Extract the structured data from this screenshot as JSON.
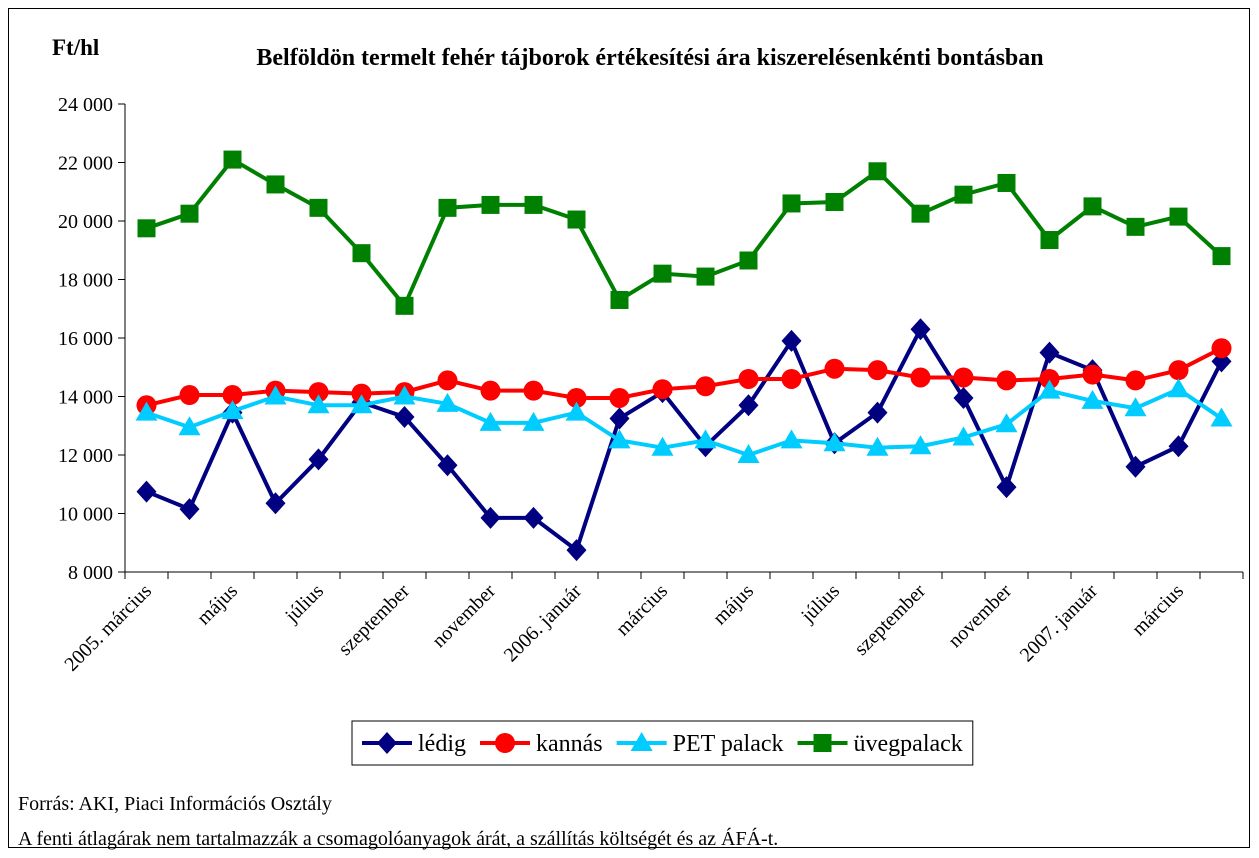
{
  "chart_data": {
    "type": "line",
    "title": "Belföldön termelt fehér tájborok értékesítési ára kiszerelésenkénti bontásban",
    "y_label": "Ft/hl",
    "categories": [
      "2005. március",
      null,
      "május",
      null,
      "július",
      null,
      "szeptember",
      null,
      "november",
      null,
      "2006. január",
      null,
      "március",
      null,
      "május",
      null,
      "július",
      null,
      "szeptember",
      null,
      "november",
      null,
      "2007. január",
      null,
      "március",
      null
    ],
    "series": [
      {
        "name": "lédig",
        "color": "#000080",
        "marker": "diamond",
        "values": [
          10750,
          10150,
          13450,
          10350,
          11850,
          13800,
          13300,
          11650,
          9850,
          9850,
          8750,
          13250,
          14150,
          12300,
          13700,
          15900,
          12400,
          13450,
          16300,
          13950,
          10900,
          15500,
          14900,
          11600,
          12300,
          15200
        ]
      },
      {
        "name": "kannás",
        "color": "#ff0000",
        "marker": "circle",
        "values": [
          13700,
          14050,
          14050,
          14200,
          14150,
          14100,
          14150,
          14550,
          14200,
          14200,
          13950,
          13950,
          14250,
          14350,
          14600,
          14600,
          14950,
          14900,
          14650,
          14650,
          14550,
          14600,
          14750,
          14550,
          14900,
          15650
        ]
      },
      {
        "name": "PET palack",
        "color": "#00ccff",
        "marker": "triangle",
        "values": [
          13450,
          12950,
          13500,
          14000,
          13700,
          13700,
          14000,
          13750,
          13100,
          13100,
          13450,
          12500,
          12250,
          12500,
          12000,
          12500,
          12400,
          12250,
          12300,
          12600,
          13050,
          14200,
          13850,
          13600,
          14250,
          13250
        ]
      },
      {
        "name": "üvegpalack",
        "color": "#008000",
        "marker": "square",
        "values": [
          19750,
          20250,
          22100,
          21250,
          20450,
          18900,
          17100,
          20450,
          20550,
          20550,
          20050,
          17300,
          18200,
          18100,
          18650,
          20600,
          20650,
          21700,
          20250,
          20900,
          21300,
          19350,
          20500,
          19800,
          20150,
          18800
        ]
      }
    ],
    "ylim": [
      8000,
      24000
    ],
    "yticks": [
      {
        "value": 8000,
        "label": "8 000"
      },
      {
        "value": 10000,
        "label": "10 000"
      },
      {
        "value": 12000,
        "label": "12 000"
      },
      {
        "value": 14000,
        "label": "14 000"
      },
      {
        "value": 16000,
        "label": "16 000"
      },
      {
        "value": 18000,
        "label": "18 000"
      },
      {
        "value": 20000,
        "label": "20 000"
      },
      {
        "value": 22000,
        "label": "22 000"
      },
      {
        "value": 24000,
        "label": "24 000"
      }
    ],
    "grid": false,
    "legend": "bottom",
    "source": "Forrás: AKI, Piaci Információs Osztály",
    "note": "A fenti átlagárak nem tartalmazzák a csomagolóanyagok árát, a szállítás költségét és az ÁFÁ-t."
  }
}
